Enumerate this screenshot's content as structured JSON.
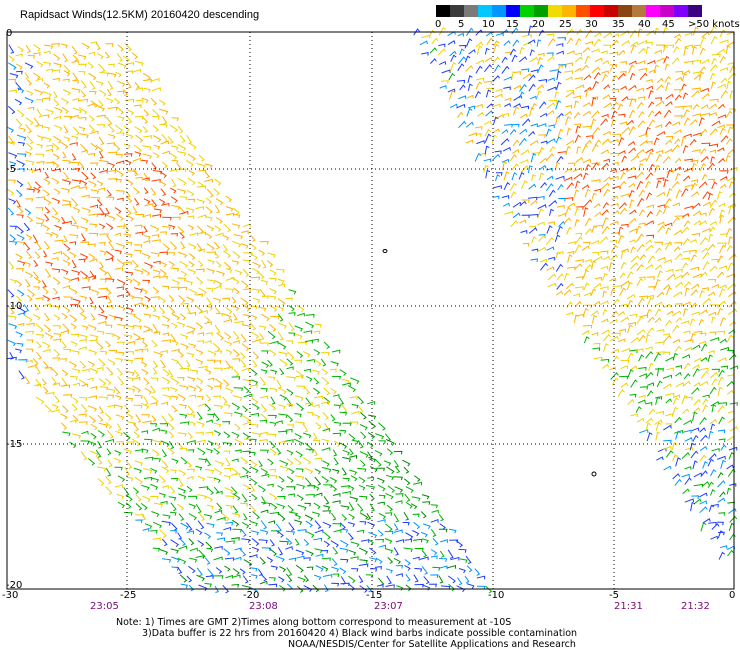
{
  "title": "Rapidsact Winds(12.5KM) 20160420 descending",
  "colorbar": {
    "colors": [
      "#000000",
      "#3a3a3a",
      "#7a7a7a",
      "#00c8ff",
      "#0096ff",
      "#0000ff",
      "#00d200",
      "#00a000",
      "#f0dc00",
      "#ffb400",
      "#ff5000",
      "#ff0000",
      "#c80000",
      "#8b4513",
      "#b47a3c",
      "#ff00ff",
      "#c800c8",
      "#8000ff",
      "#3c0082"
    ],
    "labels": [
      "0",
      "5",
      "10",
      "15",
      "20",
      "25",
      "30",
      "35",
      "40",
      "45",
      ">50 knots"
    ]
  },
  "axes": {
    "x_labels": [
      "-30",
      "-25",
      "-20",
      "-15",
      "-10",
      "-5",
      "0"
    ],
    "y_labels": [
      "0",
      "-5",
      "-10",
      "-15",
      "-20"
    ]
  },
  "times": [
    "23:05",
    "23:08",
    "23:07",
    "21:31",
    "21:32"
  ],
  "notes": {
    "line1": "Note: 1) Times are GMT 2)Times along bottom correspond to measurement at -10S",
    "line2": "3)Data buffer is 22 hrs from 20160420 4) Black wind barbs indicate possible contamination",
    "line3": "NOAA/NESDIS/Center for Satellite Applications and Research"
  }
}
